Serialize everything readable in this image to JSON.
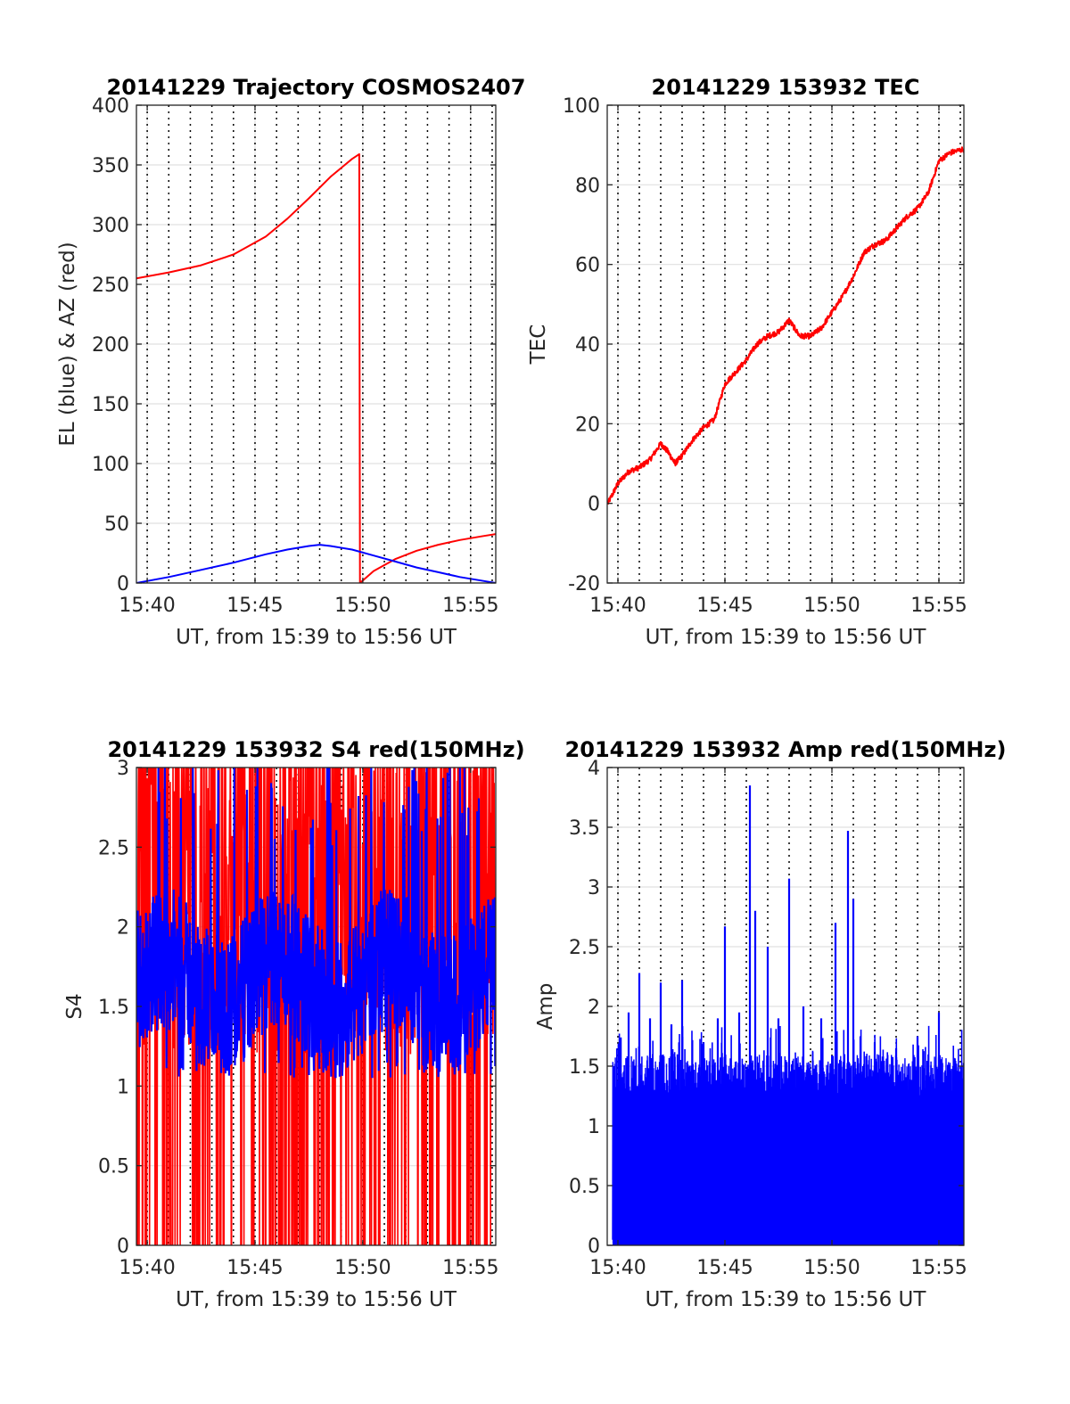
{
  "colors": {
    "red": "#ff0000",
    "blue": "#0000ff",
    "grid": "#e0e0e0",
    "axis": "#262626",
    "vline": "#000000"
  },
  "chart_data": [
    {
      "id": "trajectory",
      "type": "line",
      "title": "20141229 Trajectory COSMOS2407",
      "xlabel": "UT, from 15:39 to 15:56 UT",
      "ylabel": "EL (blue) & AZ (red)",
      "xlim": [
        "15:39:30",
        "15:56:10"
      ],
      "ylim": [
        0,
        400
      ],
      "xticks": [
        "15:40",
        "15:45",
        "15:50",
        "15:55"
      ],
      "yticks": [
        "0",
        "50",
        "100",
        "150",
        "200",
        "250",
        "300",
        "350",
        "400"
      ],
      "grid": true,
      "series": [
        {
          "color": "#ff0000",
          "x": [
            "15:39:30",
            "15:41:00",
            "15:42:30",
            "15:44:00",
            "15:45:30",
            "15:46:30",
            "15:47:30",
            "15:48:30",
            "15:49:30",
            "15:49:50",
            "15:49:52",
            "15:50:30",
            "15:51:30",
            "15:52:30",
            "15:53:30",
            "15:54:30",
            "15:55:30",
            "15:56:10"
          ],
          "values": [
            255,
            260,
            266,
            275,
            290,
            305,
            322,
            340,
            355,
            359,
            0,
            10,
            20,
            27,
            32,
            36,
            39,
            41
          ]
        },
        {
          "color": "#0000ff",
          "x": [
            "15:39:30",
            "15:41:00",
            "15:42:30",
            "15:44:00",
            "15:45:30",
            "15:46:30",
            "15:47:30",
            "15:48:00",
            "15:48:30",
            "15:49:30",
            "15:50:30",
            "15:51:30",
            "15:52:30",
            "15:53:30",
            "15:54:30",
            "15:55:30",
            "15:56:10"
          ],
          "values": [
            0,
            5,
            11,
            17,
            24,
            28,
            31,
            32,
            31,
            28,
            23,
            18,
            13,
            9,
            5,
            2,
            0
          ]
        }
      ]
    },
    {
      "id": "tec",
      "type": "line",
      "title": "20141229 153932 TEC",
      "xlabel": "UT, from 15:39 to 15:56 UT",
      "ylabel": "TEC",
      "xlim": [
        "15:39:30",
        "15:56:10"
      ],
      "ylim": [
        -20,
        100
      ],
      "xticks": [
        "15:40",
        "15:45",
        "15:50",
        "15:55"
      ],
      "yticks": [
        "-20",
        "0",
        "20",
        "40",
        "60",
        "80",
        "100"
      ],
      "grid": true,
      "series": [
        {
          "color": "#ff0000",
          "x": [
            "15:39:32",
            "15:40:00",
            "15:40:30",
            "15:41:00",
            "15:41:30",
            "15:42:00",
            "15:42:20",
            "15:42:40",
            "15:43:00",
            "15:43:30",
            "15:44:00",
            "15:44:30",
            "15:45:00",
            "15:45:30",
            "15:46:00",
            "15:46:30",
            "15:47:00",
            "15:47:30",
            "15:48:00",
            "15:48:30",
            "15:49:00",
            "15:49:30",
            "15:50:00",
            "15:50:30",
            "15:51:00",
            "15:51:30",
            "15:52:00",
            "15:52:30",
            "15:53:00",
            "15:53:30",
            "15:54:00",
            "15:54:30",
            "15:55:00",
            "15:55:30",
            "15:56:10"
          ],
          "values": [
            0,
            5,
            8,
            9,
            11,
            15,
            13,
            10,
            12,
            16,
            19,
            21,
            30,
            33,
            36,
            40,
            42,
            43,
            46,
            42,
            42,
            44,
            48,
            52,
            57,
            63,
            65,
            66,
            69,
            72,
            74,
            78,
            86,
            88,
            89
          ]
        }
      ]
    },
    {
      "id": "s4",
      "type": "line",
      "title": "20141229 153932 S4 red(150MHz)",
      "xlabel": "UT, from 15:39 to 15:56 UT",
      "ylabel": "S4",
      "xlim": [
        "15:39:30",
        "15:56:10"
      ],
      "ylim": [
        0,
        3
      ],
      "xticks": [
        "15:40",
        "15:45",
        "15:50",
        "15:55"
      ],
      "yticks": [
        "0",
        "0.5",
        "1",
        "1.5",
        "2",
        "2.5",
        "3"
      ],
      "grid": true,
      "series": [
        {
          "color": "#ff0000",
          "description": "dense noisy signal filling 0 to 3"
        },
        {
          "color": "#0000ff",
          "description": "dense noisy signal mostly between 1.1 and 2.3"
        }
      ]
    },
    {
      "id": "amp",
      "type": "line",
      "title": "20141229 153932 Amp red(150MHz)",
      "xlabel": "UT, from 15:39 to 15:56 UT",
      "ylabel": "Amp",
      "xlim": [
        "15:39:30",
        "15:56:10"
      ],
      "ylim": [
        0,
        4
      ],
      "xticks": [
        "15:40",
        "15:45",
        "15:50",
        "15:55"
      ],
      "yticks": [
        "0",
        "0.5",
        "1",
        "1.5",
        "2",
        "2.5",
        "3",
        "3.5",
        "4"
      ],
      "grid": true,
      "series": [
        {
          "color": "#0000ff",
          "peaks": {
            "x": [
              "15:39:50",
              "15:40:30",
              "15:41:00",
              "15:41:30",
              "15:42:00",
              "15:42:30",
              "15:43:00",
              "15:44:00",
              "15:44:40",
              "15:45:00",
              "15:45:40",
              "15:46:10",
              "15:46:25",
              "15:47:00",
              "15:47:30",
              "15:48:00",
              "15:48:40",
              "15:49:30",
              "15:50:10",
              "15:50:45",
              "15:51:00",
              "15:51:20",
              "15:52:00",
              "15:53:00",
              "15:54:00",
              "15:55:00",
              "15:55:40"
            ],
            "values": [
              1.5,
              1.95,
              2.28,
              1.9,
              2.2,
              1.85,
              2.22,
              1.7,
              1.9,
              2.67,
              1.95,
              3.85,
              2.8,
              2.5,
              1.9,
              3.07,
              2.0,
              1.9,
              2.7,
              3.47,
              2.9,
              1.75,
              1.7,
              1.65,
              1.75,
              1.95,
              1.5
            ]
          }
        }
      ]
    }
  ]
}
